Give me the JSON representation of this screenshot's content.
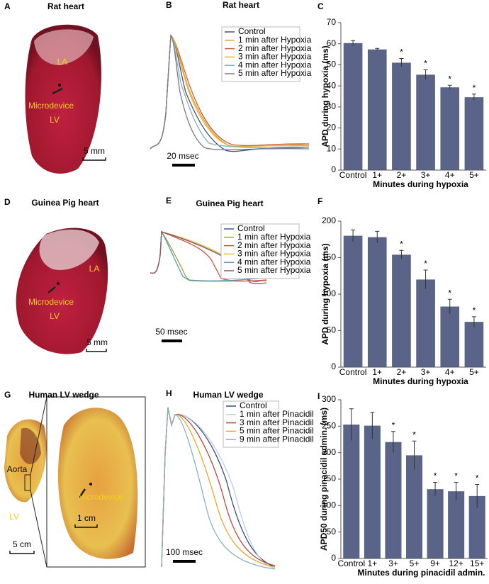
{
  "photos": [
    {
      "panel": "A",
      "title": "Rat heart",
      "labels": [
        "LA",
        "Microdevice",
        "LV"
      ],
      "scale_bars": [
        "5 mm"
      ]
    },
    {
      "panel": "D",
      "title": "Guinea Pig heart",
      "labels": [
        "LA",
        "Microdevice",
        "LV"
      ],
      "scale_bars": [
        "5 mm"
      ]
    },
    {
      "panel": "G",
      "title": "Human LV wedge",
      "labels": [
        "Aorta",
        "LV",
        "Microdevice"
      ],
      "scale_bars": [
        "1 cm",
        "5 cm"
      ]
    }
  ],
  "traces": [
    {
      "panel": "B",
      "title": "Rat heart",
      "scale_bar": "20 msec",
      "series": [
        {
          "name": "Control",
          "color": "#4a4f6a"
        },
        {
          "name": "1 min after Hypoxia",
          "color": "#e89a3a"
        },
        {
          "name": "2 min after Hypoxia",
          "color": "#d0603a"
        },
        {
          "name": "3 min after Hypoxia",
          "color": "#e4b830"
        },
        {
          "name": "4 min after Hypoxia",
          "color": "#7fb0c8"
        },
        {
          "name": "5 min after Hypoxia",
          "color": "#7a7a8a"
        }
      ]
    },
    {
      "panel": "E",
      "title": "Guinea Pig heart",
      "scale_bar": "50 msec",
      "series": [
        {
          "name": "Control",
          "color": "#3a5aa8"
        },
        {
          "name": "1 min after Hypoxia",
          "color": "#9aa83a"
        },
        {
          "name": "2 min after Hypoxia",
          "color": "#d0503a"
        },
        {
          "name": "3 min after Hypoxia",
          "color": "#e8c030"
        },
        {
          "name": "4 min after Hypoxia",
          "color": "#5a9ab8"
        },
        {
          "name": "5 min after Hypoxia",
          "color": "#8a5a6a"
        }
      ]
    },
    {
      "panel": "H",
      "title": "Human LV wedge",
      "scale_bar": "100 msec",
      "series": [
        {
          "name": "Control",
          "color": "#3a4a7a"
        },
        {
          "name": "1 min after Pinacidil",
          "color": "#b8d0e8"
        },
        {
          "name": "3 min after Pinacidil",
          "color": "#b8483a"
        },
        {
          "name": "5 min after Pinacidil",
          "color": "#e0a830"
        },
        {
          "name": "9 min after Pinacidil",
          "color": "#8ab0c0"
        }
      ]
    }
  ],
  "chart_data": [
    {
      "panel": "C",
      "type": "bar",
      "ylabel": "APD during hypoxia (ms)",
      "xlabel": "Minutes during hypoxia",
      "categories": [
        "Control",
        "1+",
        "2+",
        "3+",
        "4+",
        "5+"
      ],
      "values": [
        60.3,
        57.3,
        51,
        45.3,
        39.3,
        34.6
      ],
      "errors": [
        1.2,
        0.5,
        2,
        2.3,
        1,
        1.5
      ],
      "annotations": [
        null,
        null,
        "*",
        "*",
        "*",
        "*"
      ],
      "ylim": [
        0,
        70
      ],
      "yticks": [
        0,
        10,
        20,
        30,
        40,
        50,
        60,
        70
      ],
      "color": "#5a6488"
    },
    {
      "panel": "F",
      "type": "bar",
      "ylabel": "APD during hypoxia (ms)",
      "xlabel": "Minutes during hypoxia",
      "categories": [
        "Control",
        "1+",
        "2+",
        "3+",
        "4+",
        "5+"
      ],
      "values": [
        180,
        178,
        154,
        120,
        83,
        62
      ],
      "errors": [
        8,
        8,
        6,
        13,
        10,
        7
      ],
      "annotations": [
        null,
        null,
        "*",
        "*",
        "*",
        "*"
      ],
      "ylim": [
        0,
        200
      ],
      "yticks": [
        0,
        50,
        100,
        150,
        200
      ],
      "color": "#5a6488"
    },
    {
      "panel": "I",
      "type": "bar",
      "ylabel": "APD50 during pinacidil admin. (ms)",
      "xlabel": "Minutes during pinacidil admin.",
      "categories": [
        "Control",
        "1+",
        "3+",
        "5+",
        "9+",
        "12+",
        "15+"
      ],
      "values": [
        253,
        251,
        220,
        195,
        131,
        127,
        118
      ],
      "errors": [
        30,
        25,
        20,
        27,
        13,
        17,
        22
      ],
      "annotations": [
        null,
        null,
        "*",
        "*",
        "*",
        "*",
        "*"
      ],
      "ylim": [
        0,
        300
      ],
      "yticks": [
        0,
        50,
        100,
        150,
        200,
        250,
        300
      ],
      "color": "#5a6488"
    }
  ]
}
